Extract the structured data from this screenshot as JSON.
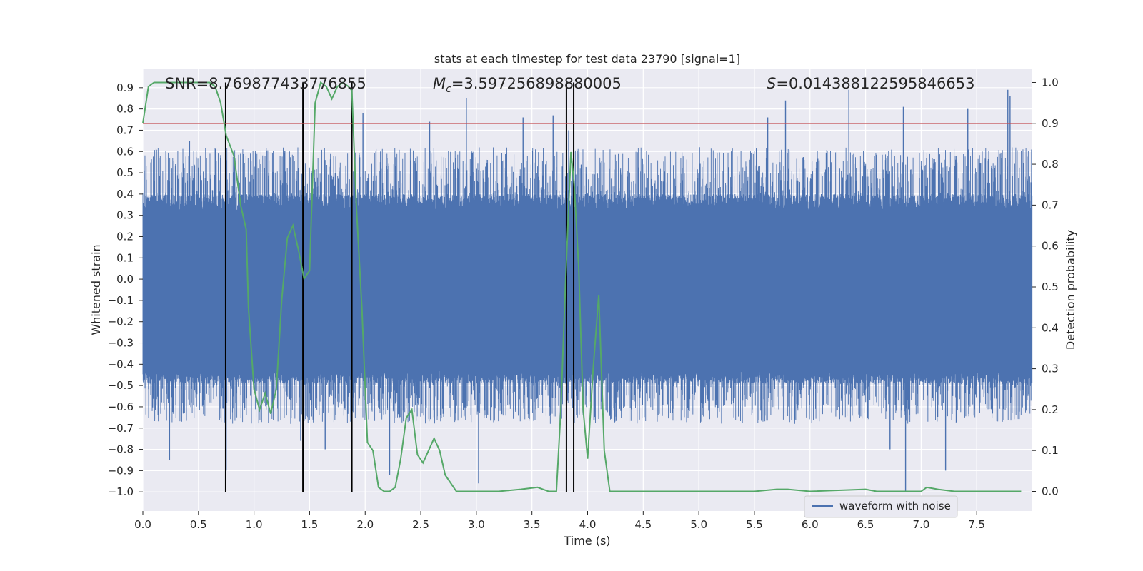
{
  "chart_data": {
    "type": "line",
    "title": "stats at each timestep for test data 23790 [signal=1]",
    "xlabel": "Time (s)",
    "ylabel": "Whitened strain",
    "y2label": "Detection probability",
    "xlim": [
      0,
      8.0
    ],
    "ylim": [
      -1.09,
      0.99
    ],
    "y2lim": [
      -0.048,
      1.034
    ],
    "x_ticks": [
      0.0,
      0.5,
      1.0,
      1.5,
      2.0,
      2.5,
      3.0,
      3.5,
      4.0,
      4.5,
      5.0,
      5.5,
      6.0,
      6.5,
      7.0,
      7.5
    ],
    "x_tick_labels": [
      "0.0",
      "0.5",
      "1.0",
      "1.5",
      "2.0",
      "2.5",
      "3.0",
      "3.5",
      "4.0",
      "4.5",
      "5.0",
      "5.5",
      "6.0",
      "6.5",
      "7.0",
      "7.5"
    ],
    "y_ticks": [
      0.9,
      0.8,
      0.7,
      0.6,
      0.5,
      0.4,
      0.3,
      0.2,
      0.1,
      0.0,
      -0.1,
      -0.2,
      -0.3,
      -0.4,
      -0.5,
      -0.6,
      -0.7,
      -0.8,
      -0.9,
      -1.0
    ],
    "y_tick_labels": [
      "0.9",
      "0.8",
      "0.7",
      "0.6",
      "0.5",
      "0.4",
      "0.3",
      "0.2",
      "0.1",
      "0.0",
      "−0.1",
      "−0.2",
      "−0.3",
      "−0.4",
      "−0.5",
      "−0.6",
      "−0.7",
      "−0.8",
      "−0.9",
      "−1.0"
    ],
    "y2_ticks": [
      1.0,
      0.9,
      0.8,
      0.7,
      0.6,
      0.5,
      0.4,
      0.3,
      0.2,
      0.1,
      0.0
    ],
    "y2_tick_labels": [
      "1.0",
      "0.9",
      "0.8",
      "0.7",
      "0.6",
      "0.5",
      "0.4",
      "0.3",
      "0.2",
      "0.1",
      "0.0"
    ],
    "grid": true,
    "legend": {
      "placement": "bottom-right",
      "entries": [
        "waveform with noise"
      ]
    },
    "annotations": {
      "snr": "SNR=8.769877433776855",
      "mc_symbol": "M",
      "mc_sub": "c",
      "mc_value": "=3.597256898880005",
      "s_symbol": "S",
      "s_value": "=0.014388122595846653"
    },
    "threshold": {
      "y2": 0.9,
      "color": "#c44e52"
    },
    "vertical_lines_x": [
      0.745,
      1.44,
      1.88,
      3.81,
      3.875
    ],
    "waveform": {
      "name": "waveform with noise",
      "color": "#4c72b0",
      "duration": 8.0,
      "dense_band": [
        -0.43,
        0.32
      ],
      "spikes": [
        {
          "x": 0.75,
          "y": -0.9
        },
        {
          "x": 0.24,
          "y": -0.85
        },
        {
          "x": 0.42,
          "y": 0.65
        },
        {
          "x": 1.42,
          "y": -0.76
        },
        {
          "x": 1.64,
          "y": -0.8
        },
        {
          "x": 1.98,
          "y": 0.78
        },
        {
          "x": 2.22,
          "y": -0.92
        },
        {
          "x": 2.58,
          "y": 0.74
        },
        {
          "x": 2.91,
          "y": 0.85
        },
        {
          "x": 3.02,
          "y": -0.96
        },
        {
          "x": 3.42,
          "y": 0.76
        },
        {
          "x": 3.69,
          "y": 0.77
        },
        {
          "x": 3.83,
          "y": 0.7
        },
        {
          "x": 5.62,
          "y": 0.76
        },
        {
          "x": 5.78,
          "y": 0.84
        },
        {
          "x": 6.35,
          "y": 0.89
        },
        {
          "x": 6.72,
          "y": -0.8
        },
        {
          "x": 6.84,
          "y": 0.81
        },
        {
          "x": 6.86,
          "y": -1.0
        },
        {
          "x": 7.22,
          "y": -0.9
        },
        {
          "x": 7.42,
          "y": 0.8
        },
        {
          "x": 7.78,
          "y": 0.89
        },
        {
          "x": 7.8,
          "y": 0.86
        }
      ]
    },
    "probability": {
      "color": "#55a868",
      "x": [
        0.0,
        0.05,
        0.1,
        0.15,
        0.2,
        0.3,
        0.4,
        0.5,
        0.6,
        0.65,
        0.7,
        0.75,
        0.82,
        0.88,
        0.93,
        0.95,
        1.0,
        1.05,
        1.1,
        1.15,
        1.2,
        1.25,
        1.3,
        1.35,
        1.4,
        1.45,
        1.5,
        1.55,
        1.6,
        1.65,
        1.7,
        1.75,
        1.8,
        1.85,
        1.88,
        1.92,
        1.97,
        2.02,
        2.07,
        2.12,
        2.17,
        2.22,
        2.27,
        2.32,
        2.37,
        2.42,
        2.47,
        2.52,
        2.57,
        2.62,
        2.67,
        2.72,
        2.77,
        2.82,
        2.9,
        3.0,
        3.2,
        3.4,
        3.55,
        3.65,
        3.72,
        3.76,
        3.8,
        3.85,
        3.88,
        3.92,
        3.96,
        4.0,
        4.05,
        4.1,
        4.15,
        4.2,
        4.25,
        4.3,
        4.5,
        5.0,
        5.5,
        5.7,
        5.8,
        6.0,
        6.5,
        6.6,
        6.8,
        6.95,
        7.0,
        7.05,
        7.15,
        7.3,
        7.5,
        7.9
      ],
      "values": [
        0.9,
        0.99,
        1.0,
        1.0,
        1.0,
        1.0,
        1.0,
        1.0,
        1.0,
        0.99,
        0.95,
        0.87,
        0.82,
        0.7,
        0.64,
        0.45,
        0.25,
        0.2,
        0.24,
        0.19,
        0.25,
        0.47,
        0.62,
        0.65,
        0.59,
        0.52,
        0.54,
        0.95,
        1.0,
        0.99,
        0.96,
        0.99,
        1.0,
        0.99,
        0.98,
        0.7,
        0.45,
        0.12,
        0.1,
        0.01,
        0.0,
        0.0,
        0.01,
        0.08,
        0.18,
        0.2,
        0.09,
        0.07,
        0.1,
        0.13,
        0.1,
        0.04,
        0.02,
        0.0,
        0.0,
        0.0,
        0.0,
        0.005,
        0.01,
        0.0,
        0.0,
        0.2,
        0.5,
        0.83,
        0.75,
        0.55,
        0.2,
        0.08,
        0.3,
        0.48,
        0.1,
        0.0,
        0.0,
        0.0,
        0.0,
        0.0,
        0.0,
        0.005,
        0.005,
        0.0,
        0.005,
        0.0,
        0.0,
        0.0,
        0.0,
        0.01,
        0.005,
        0.0,
        0.0,
        0.0
      ]
    }
  }
}
